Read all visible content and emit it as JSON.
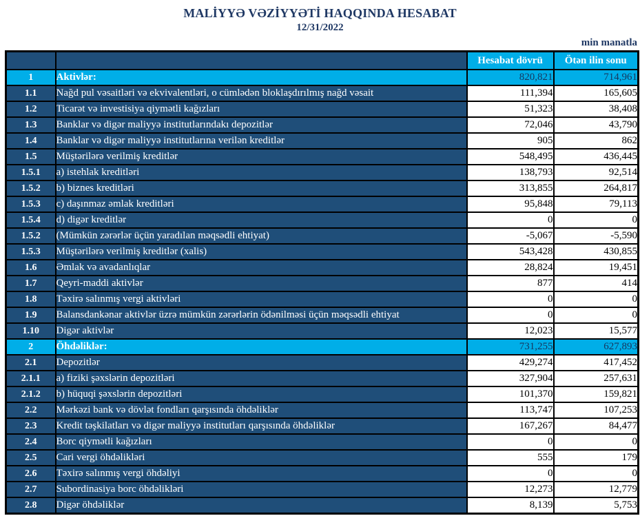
{
  "title": "MALİYYƏ VƏZİYYƏTİ HAQQINDA HESABAT",
  "date": "12/31/2022",
  "unit_note": "min manatla",
  "colors": {
    "row_navy": "#1F4E79",
    "section_cyan": "#00AEE8",
    "title_text": "#1F3864",
    "section_value_text": "#17365D",
    "border": "#000000"
  },
  "table": {
    "columns": [
      "Hesabat dövrü",
      "Ötən ilin sonu"
    ],
    "rows": [
      {
        "num": "1",
        "label": "Aktivlər:",
        "current": "820,821",
        "prior": "714,961",
        "section": true
      },
      {
        "num": "1.1",
        "label": "Nağd pul vəsaitləri və  ekvivalentləri, o cümlədən bloklaşdırılmış nağd vəsait",
        "current": "111,394",
        "prior": "165,605",
        "section": false
      },
      {
        "num": "1.2",
        "label": "Ticarət və investisiya qiymətli kağızları",
        "current": "51,323",
        "prior": "38,408",
        "section": false
      },
      {
        "num": "1.3",
        "label": "Banklar və digər maliyyə institutlarındakı depozitlər",
        "current": "72,046",
        "prior": "43,790",
        "section": false
      },
      {
        "num": "1.4",
        "label": "Banklar və digər maliyyə institutlarına verilən kreditlər",
        "current": "905",
        "prior": "862",
        "section": false
      },
      {
        "num": "1.5",
        "label": "Müştərilərə verilmiş kreditlər",
        "current": "548,495",
        "prior": "436,445",
        "section": false
      },
      {
        "num": "1.5.1",
        "label": "a) istehlak kreditləri",
        "current": "138,793",
        "prior": "92,514",
        "section": false
      },
      {
        "num": "1.5.2",
        "label": "b) biznes kreditləri",
        "current": "313,855",
        "prior": "264,817",
        "section": false
      },
      {
        "num": "1.5.3",
        "label": "c) daşınmaz əmlak kreditləri",
        "current": "95,848",
        "prior": "79,113",
        "section": false
      },
      {
        "num": "1.5.4",
        "label": "d) digər kreditlər",
        "current": "0",
        "prior": "0",
        "section": false
      },
      {
        "num": "1.5.2",
        "label": "(Mümkün zərərlər üçün yaradılan məqsədli ehtiyat)",
        "current": "-5,067",
        "prior": "-5,590",
        "section": false
      },
      {
        "num": "1.5.3",
        "label": "Müştərilərə verilmiş kreditlər (xalis)",
        "current": "543,428",
        "prior": "430,855",
        "section": false
      },
      {
        "num": "1.6",
        "label": "Əmlak və avadanlıqlar",
        "current": "28,824",
        "prior": "19,451",
        "section": false
      },
      {
        "num": "1.7",
        "label": "Qeyri-maddi aktivlər",
        "current": "877",
        "prior": "414",
        "section": false
      },
      {
        "num": "1.8",
        "label": "Təxirə salınmış vergi aktivləri",
        "current": "0",
        "prior": "0",
        "section": false
      },
      {
        "num": "1.9",
        "label": "Balansdankənar aktivlər üzrə mümkün zərərlərin ödənilməsi üçün məqsədli ehtiyat",
        "current": "0",
        "prior": "0",
        "section": false
      },
      {
        "num": "1.10",
        "label": "Digər aktivlər",
        "current": "12,023",
        "prior": "15,577",
        "section": false
      },
      {
        "num": "2",
        "label": "Öhdəliklər:",
        "current": "731,255",
        "prior": "627,893",
        "section": true
      },
      {
        "num": "2.1",
        "label": "Depozitlər",
        "current": "429,274",
        "prior": "417,452",
        "section": false
      },
      {
        "num": "2.1.1",
        "label": "a) fiziki şəxslərin depozitləri",
        "current": "327,904",
        "prior": "257,631",
        "section": false
      },
      {
        "num": "2.1.2",
        "label": "b) hüquqi şəxslərin depozitləri",
        "current": "101,370",
        "prior": "159,821",
        "section": false
      },
      {
        "num": "2.2",
        "label": "Mərkəzi bank və dövlət fondları qarşısında öhdəliklər",
        "current": "113,747",
        "prior": "107,253",
        "section": false
      },
      {
        "num": "2.3",
        "label": "Kredit təşkilatları və digər maliyyə institutları qarşısında öhdəliklər",
        "current": "167,267",
        "prior": "84,477",
        "section": false
      },
      {
        "num": "2.4",
        "label": "Borc qiymətli kağızları",
        "current": "0",
        "prior": "0",
        "section": false
      },
      {
        "num": "2.5",
        "label": "Cari vergi öhdəlikləri",
        "current": "555",
        "prior": "179",
        "section": false
      },
      {
        "num": "2.6",
        "label": "Təxirə salınmış vergi öhdəliyi",
        "current": "0",
        "prior": "0",
        "section": false
      },
      {
        "num": "2.7",
        "label": "Subordinasiya borc öhdəlikləri",
        "current": "12,273",
        "prior": "12,779",
        "section": false
      },
      {
        "num": "2.8",
        "label": "Digər öhdəliklər",
        "current": "8,139",
        "prior": "5,753",
        "section": false
      }
    ]
  }
}
